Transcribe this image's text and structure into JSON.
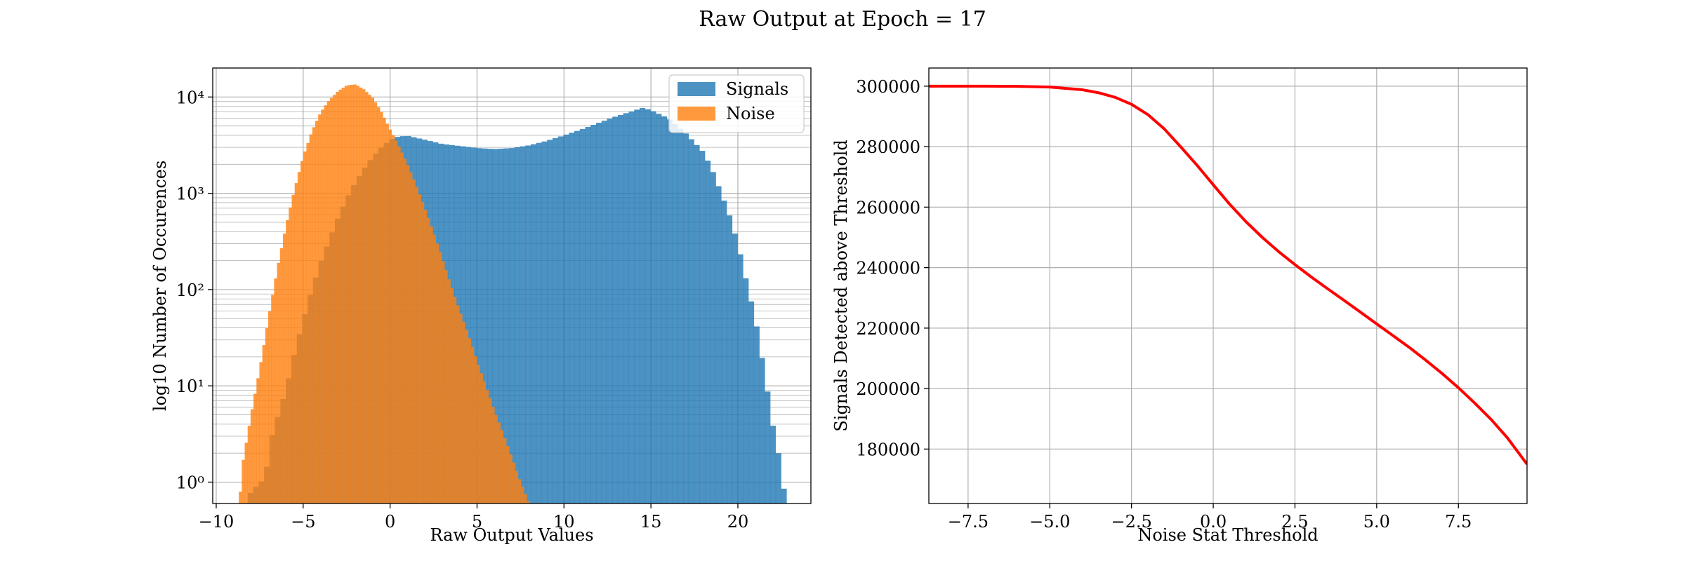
{
  "figure": {
    "title": "Raw Output at Epoch = 17"
  },
  "chart_data": [
    {
      "type": "bar",
      "subtype": "histogram",
      "xlabel": "Raw Output Values",
      "ylabel": "log10 Number of Occurences",
      "xlim": [
        -10.2,
        24.2
      ],
      "ylim": [
        0.6,
        20000
      ],
      "yscale": "log",
      "x_ticks": [
        -10,
        -5,
        0,
        5,
        10,
        15,
        20
      ],
      "y_ticks": [
        1,
        10,
        100,
        1000,
        10000
      ],
      "y_tick_labels": [
        "10⁰",
        "10¹",
        "10²",
        "10³",
        "10⁴"
      ],
      "grid": true,
      "legend": {
        "placement": "top-right"
      },
      "series": [
        {
          "name": "Signals",
          "color": "#1f77b4",
          "opacity": 0.8,
          "bin_start": -8.5,
          "bin_end": 22.8,
          "bin_count": 100,
          "key_points": [
            [
              -8.4,
              0.5
            ],
            [
              -8,
              0.8
            ],
            [
              -7.2,
              1.1
            ],
            [
              -6.8,
              3
            ],
            [
              -6,
              9
            ],
            [
              -5.5,
              22
            ],
            [
              -5,
              48
            ],
            [
              -4.5,
              100
            ],
            [
              -4,
              190
            ],
            [
              -3.5,
              330
            ],
            [
              -3,
              560
            ],
            [
              -2.5,
              880
            ],
            [
              -2,
              1300
            ],
            [
              -1.5,
              1800
            ],
            [
              -1,
              2400
            ],
            [
              -0.5,
              3000
            ],
            [
              0,
              3600
            ],
            [
              0.5,
              3900
            ],
            [
              1,
              3950
            ],
            [
              2,
              3600
            ],
            [
              3,
              3250
            ],
            [
              4,
              3100
            ],
            [
              5,
              2950
            ],
            [
              6,
              2880
            ],
            [
              7,
              2950
            ],
            [
              8,
              3150
            ],
            [
              9,
              3500
            ],
            [
              10,
              4000
            ],
            [
              11,
              4600
            ],
            [
              12,
              5400
            ],
            [
              13,
              6300
            ],
            [
              14,
              7200
            ],
            [
              14.5,
              7700
            ],
            [
              15,
              7300
            ],
            [
              16,
              6000
            ],
            [
              17,
              4200
            ],
            [
              18,
              2700
            ],
            [
              18.5,
              1800
            ],
            [
              19,
              1050
            ],
            [
              19.5,
              600
            ],
            [
              20,
              300
            ],
            [
              20.5,
              120
            ],
            [
              21,
              50
            ],
            [
              21.5,
              15
            ],
            [
              22,
              4
            ],
            [
              22.5,
              1.4
            ],
            [
              22.8,
              0.5
            ]
          ]
        },
        {
          "name": "Noise",
          "color": "#ff7f0e",
          "opacity": 0.8,
          "bin_start": -8.7,
          "bin_end": 8.2,
          "bin_count": 100,
          "key_points": [
            [
              -8.7,
              0.5
            ],
            [
              -8.5,
              1.5
            ],
            [
              -8,
              5
            ],
            [
              -7.5,
              15
            ],
            [
              -7,
              50
            ],
            [
              -6.5,
              160
            ],
            [
              -6,
              450
            ],
            [
              -5.5,
              1100
            ],
            [
              -5,
              2400
            ],
            [
              -4.5,
              4400
            ],
            [
              -4,
              6900
            ],
            [
              -3.5,
              9300
            ],
            [
              -3,
              11500
            ],
            [
              -2.5,
              13200
            ],
            [
              -2,
              13500
            ],
            [
              -1.5,
              12000
            ],
            [
              -1,
              9800
            ],
            [
              -0.5,
              7000
            ],
            [
              0,
              4600
            ],
            [
              0.5,
              3100
            ],
            [
              1,
              2000
            ],
            [
              1.5,
              1200
            ],
            [
              2,
              700
            ],
            [
              2.5,
              390
            ],
            [
              3,
              210
            ],
            [
              3.5,
              110
            ],
            [
              4,
              60
            ],
            [
              4.5,
              34
            ],
            [
              5,
              18
            ],
            [
              5.5,
              10
            ],
            [
              6,
              5.5
            ],
            [
              6.5,
              3.2
            ],
            [
              7,
              1.8
            ],
            [
              7.5,
              1
            ],
            [
              8,
              0.6
            ],
            [
              8.2,
              0.5
            ]
          ]
        }
      ]
    },
    {
      "type": "line",
      "xlabel": "Noise Stat Threshold",
      "ylabel": "Signals Detected above Threshold",
      "xlim": [
        -8.7,
        9.6
      ],
      "ylim": [
        162000,
        306000
      ],
      "x_ticks": [
        -7.5,
        -5.0,
        -2.5,
        0.0,
        2.5,
        5.0,
        7.5
      ],
      "x_tick_labels": [
        "−7.5",
        "−5.0",
        "−2.5",
        "0.0",
        "2.5",
        "5.0",
        "7.5"
      ],
      "y_ticks": [
        180000,
        200000,
        220000,
        240000,
        260000,
        280000,
        300000
      ],
      "y_tick_labels": [
        "180000",
        "200000",
        "220000",
        "240000",
        "260000",
        "280000",
        "300000"
      ],
      "grid": true,
      "series": [
        {
          "color": "#ff0000",
          "x": [
            -8.7,
            -7,
            -6,
            -5,
            -4,
            -3.5,
            -3,
            -2.5,
            -2,
            -1.5,
            -1,
            -0.5,
            0,
            0.5,
            1,
            1.5,
            2,
            2.5,
            3,
            3.5,
            4,
            4.5,
            5,
            5.5,
            6,
            6.5,
            7,
            7.5,
            8,
            8.5,
            9,
            9.6
          ],
          "y": [
            300000,
            300000,
            299950,
            299700,
            298800,
            297800,
            296300,
            294000,
            290600,
            285900,
            280000,
            273900,
            267400,
            261000,
            255200,
            250000,
            245300,
            241000,
            236900,
            233000,
            229200,
            225300,
            221400,
            217500,
            213600,
            209400,
            205000,
            200300,
            195200,
            189800,
            183700,
            175000
          ]
        }
      ]
    }
  ]
}
